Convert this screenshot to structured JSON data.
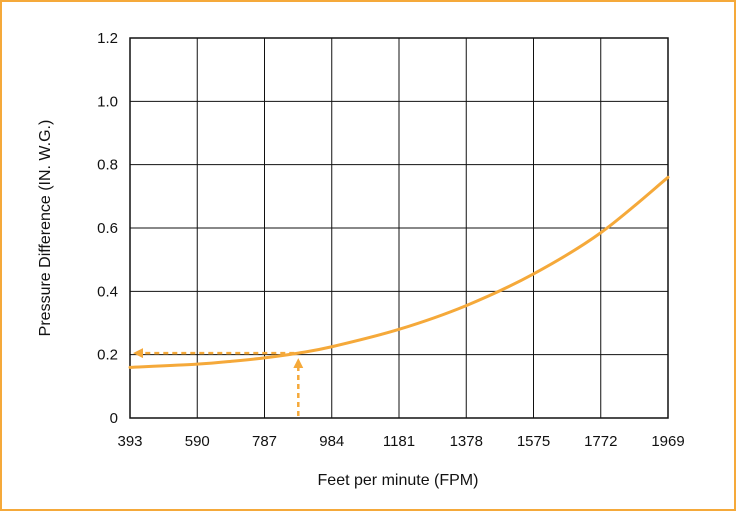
{
  "chart_data": {
    "type": "line",
    "title": "",
    "xlabel": "Feet per minute (FPM)",
    "ylabel": "Pressure Difference (IN. W.G.)",
    "x_ticks": [
      "393",
      "590",
      "787",
      "984",
      "1181",
      "1378",
      "1575",
      "1772",
      "1969"
    ],
    "y_ticks": [
      "0",
      "0.2",
      "0.4",
      "0.6",
      "0.8",
      "1.0",
      "1.2"
    ],
    "xlim": [
      393,
      1969
    ],
    "ylim": [
      0,
      1.2
    ],
    "grid": true,
    "series": [
      {
        "x": [
          393,
          590,
          700,
          787,
          886,
          984,
          1181,
          1378,
          1575,
          1772,
          1969
        ],
        "y": [
          0.16,
          0.17,
          0.18,
          0.19,
          0.205,
          0.225,
          0.28,
          0.355,
          0.455,
          0.585,
          0.76
        ]
      }
    ],
    "annotation": {
      "x": 886,
      "y": 0.205,
      "style": "dashed-arrows"
    },
    "colors": {
      "curve": "#f5a93a",
      "frame": "#f5a93a",
      "grid": "#111111"
    }
  }
}
